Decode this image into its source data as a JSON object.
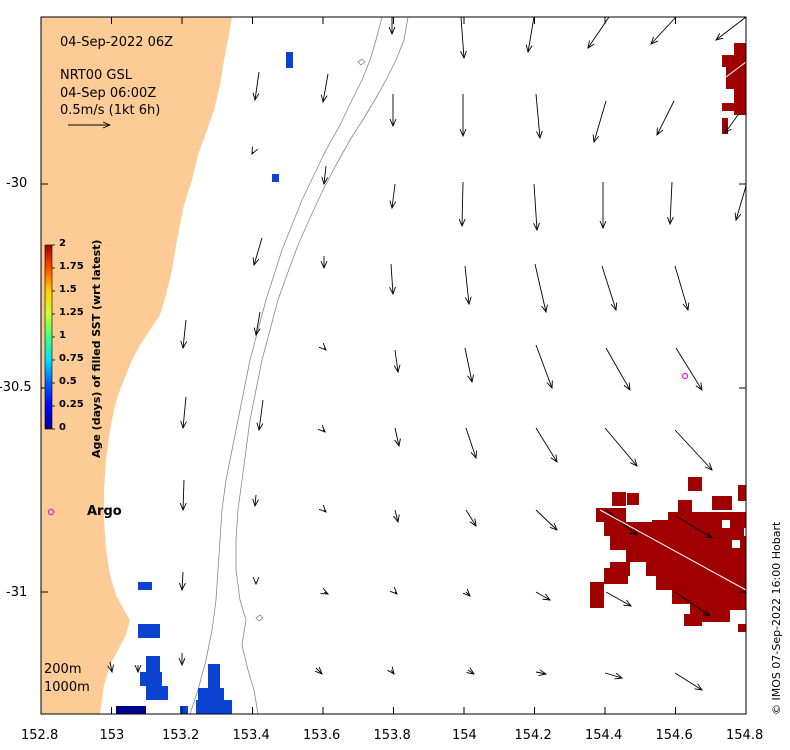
{
  "map": {
    "date_title": "04-Sep-2022 06Z",
    "product": "NRT00 GSL",
    "product_time": "04-Sep 06:00Z",
    "scale_label": "0.5m/s (1kt 6h)",
    "argo_label": "Argo",
    "depth_labels": [
      "200m",
      "1000m"
    ],
    "credit": "© IMOS 07-Sep-2022 16:00 Hobart",
    "land_color": "#FDCB95",
    "argo_color": "#E020E0",
    "lon_ticks": [
      "152.8",
      "153",
      "153.2",
      "153.4",
      "153.6",
      "153.8",
      "154",
      "154.2",
      "154.4",
      "154.6",
      "154.8"
    ],
    "lat_ticks": [
      "-30",
      "-30.5",
      "-31"
    ]
  },
  "colorbar": {
    "title": "Age (days) of filled SST (wrt latest)",
    "ticks": [
      "2",
      "1.75",
      "1.5",
      "1.25",
      "1",
      "0.75",
      "0.5",
      "0.25",
      "0"
    ]
  }
}
